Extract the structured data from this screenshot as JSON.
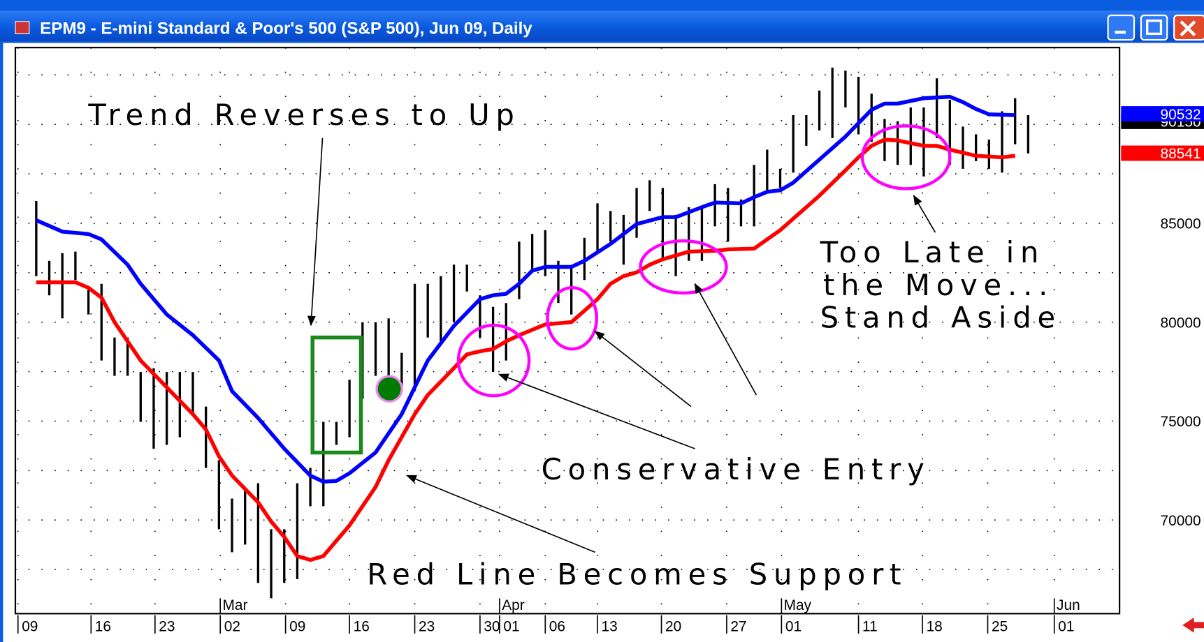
{
  "window": {
    "title": "EPM9 - E-mini Standard & Poor's 500 (S&P 500), Jun 09, Daily"
  },
  "chart_data": {
    "type": "ohlc",
    "annotations": [
      "Trend Reverses to Up",
      "Conservative Entry",
      "Red Line Becomes Support",
      "Too Late in",
      "the Move...",
      "Stand Aside"
    ],
    "xlim": [
      -1.6,
      83
    ],
    "xticks": [
      {
        "value": -1.4,
        "label": "09"
      },
      {
        "value": 4.2,
        "label": "16"
      },
      {
        "value": 9.1,
        "label": "23"
      },
      {
        "value": 14.1,
        "label": "02"
      },
      {
        "value": 19.1,
        "label": "09"
      },
      {
        "value": 24,
        "label": "16"
      },
      {
        "value": 29,
        "label": "23"
      },
      {
        "value": 34,
        "label": "30"
      },
      {
        "value": 35.5,
        "label": "01"
      },
      {
        "value": 39,
        "label": "06"
      },
      {
        "value": 43,
        "label": "13"
      },
      {
        "value": 47.9,
        "label": "20"
      },
      {
        "value": 52.9,
        "label": "27"
      },
      {
        "value": 57.1,
        "label": "01"
      },
      {
        "value": 63,
        "label": "11"
      },
      {
        "value": 67.9,
        "label": "18"
      },
      {
        "value": 72.9,
        "label": "25"
      },
      {
        "value": 78,
        "label": "01"
      }
    ],
    "month_ticks": [
      {
        "value": 14.1,
        "label": "Mar"
      },
      {
        "value": 35.5,
        "label": "Apr"
      },
      {
        "value": 57.1,
        "label": "May"
      },
      {
        "value": 78,
        "label": "Jun"
      }
    ],
    "ylim": [
      65270,
      93880
    ],
    "yticks": [
      70000,
      75000,
      80000,
      85000
    ],
    "minor_yticks": [
      67500,
      72500,
      77500,
      82500,
      87500,
      90000,
      92500
    ],
    "grid": true,
    "bar_color": "#000000",
    "x": [
      0,
      1,
      2,
      3,
      4,
      5,
      6,
      7,
      8,
      9,
      10,
      11,
      12,
      13,
      14,
      15,
      16,
      17,
      18,
      19,
      20,
      21,
      22,
      23,
      24,
      25,
      26,
      27,
      28,
      29,
      30,
      31,
      32,
      33,
      34,
      35,
      36,
      37,
      38,
      39,
      40,
      41,
      42,
      43,
      44,
      45,
      46,
      47,
      48,
      49,
      50,
      51,
      52,
      53,
      54,
      55,
      56,
      57,
      58,
      59,
      60,
      61,
      62,
      63,
      64,
      65,
      66,
      67,
      68,
      69,
      70,
      71,
      72,
      73,
      74,
      75,
      76
    ],
    "high": [
      86124,
      83101,
      83488,
      83566,
      81628,
      81938,
      79225,
      79225,
      77481,
      77674,
      77481,
      77481,
      77481,
      75736,
      73023,
      71085,
      71473,
      71860,
      69535,
      69535,
      71860,
      72636,
      74961,
      74961,
      77093,
      80000,
      80000,
      80194,
      78450,
      81938,
      81938,
      82326,
      82907,
      82907,
      81357,
      80775,
      80969,
      84070,
      84457,
      84651,
      83101,
      82713,
      84264,
      86008,
      85620,
      85426,
      86783,
      87171,
      86783,
      85426,
      85814,
      85814,
      86977,
      86783,
      86202,
      87946,
      88721,
      87752,
      90465,
      90465,
      91706,
      92868,
      92713,
      92403,
      91550,
      90271,
      90155,
      90853,
      90853,
      92326,
      91240,
      89884,
      89496,
      89225,
      90659,
      91318,
      90465
    ],
    "low": [
      82326,
      81357,
      80194,
      82132,
      80388,
      78062,
      77287,
      77287,
      74961,
      73605,
      73798,
      74186,
      75349,
      72636,
      69535,
      68372,
      68760,
      66822,
      66046,
      66822,
      67016,
      70698,
      70698,
      73798,
      74186,
      76124,
      77287,
      76124,
      76512,
      76512,
      79225,
      79031,
      80000,
      81550,
      79225,
      77481,
      78062,
      81163,
      82519,
      82326,
      80969,
      80388,
      82132,
      83488,
      84070,
      82907,
      84264,
      85620,
      83101,
      82326,
      83101,
      83101,
      84845,
      84070,
      84845,
      84845,
      86589,
      86783,
      87558,
      88915,
      89690,
      89302,
      90853,
      89496,
      89109,
      88140,
      87946,
      87946,
      87364,
      89302,
      87946,
      87752,
      88140,
      87752,
      87558,
      88992,
      88527
    ],
    "series": [
      {
        "color": "#0000ff",
        "x": [
          0,
          2,
          4,
          5,
          7,
          8,
          10,
          12,
          14,
          15,
          17,
          19,
          21,
          22,
          23,
          24,
          26,
          28,
          29,
          30,
          32,
          34,
          35,
          36,
          37,
          38,
          39,
          41,
          42,
          44,
          46,
          48,
          49,
          51,
          52,
          54,
          55,
          56,
          57,
          58,
          60,
          62,
          64,
          65,
          66,
          68,
          70,
          71,
          72,
          73,
          75
        ],
        "values": [
          85155,
          84574,
          84457,
          84186,
          82907,
          81938,
          80388,
          79341,
          78062,
          76512,
          75155,
          73605,
          72248,
          71938,
          71977,
          72364,
          73411,
          75349,
          76705,
          78062,
          79806,
          81163,
          81357,
          81434,
          81938,
          82597,
          82791,
          82791,
          83101,
          83954,
          84961,
          85310,
          85310,
          85814,
          86047,
          86008,
          86318,
          86589,
          86667,
          87054,
          88217,
          89380,
          90737,
          91047,
          91047,
          91318,
          91395,
          91124,
          90775,
          90504,
          90465
        ]
      },
      {
        "color": "#ff0000",
        "x": [
          0,
          3,
          4,
          5,
          6,
          8,
          10,
          12,
          13,
          14,
          15,
          17,
          18,
          19,
          20,
          21,
          22,
          23,
          24,
          25,
          26,
          27,
          28,
          29,
          30,
          32,
          33,
          34,
          35,
          36,
          37,
          38,
          39,
          41,
          42,
          43,
          44,
          45,
          46,
          47,
          48,
          49,
          50,
          52,
          53,
          55,
          56,
          57,
          58,
          60,
          62,
          63,
          64,
          65,
          66,
          68,
          69,
          70,
          72,
          74,
          75
        ],
        "values": [
          82016,
          82016,
          81744,
          81240,
          80000,
          78062,
          76705,
          75349,
          74574,
          73217,
          72248,
          70891,
          69922,
          69147,
          68178,
          67984,
          68178,
          68953,
          69729,
          70698,
          71667,
          73023,
          74186,
          75349,
          76318,
          77674,
          78372,
          78527,
          78643,
          79031,
          79341,
          79612,
          79884,
          80000,
          80581,
          81163,
          81938,
          82326,
          82519,
          82907,
          83178,
          83372,
          83566,
          83605,
          83682,
          83721,
          84186,
          84651,
          85233,
          86395,
          87674,
          88333,
          88915,
          89225,
          89186,
          88915,
          88915,
          88721,
          88411,
          88333,
          88411
        ]
      }
    ],
    "price_labels": [
      {
        "value": 90150,
        "color": "#000000"
      },
      {
        "value": 90532,
        "color": "#0000ff"
      },
      {
        "value": 88541,
        "color": "#ff0000"
      }
    ]
  }
}
